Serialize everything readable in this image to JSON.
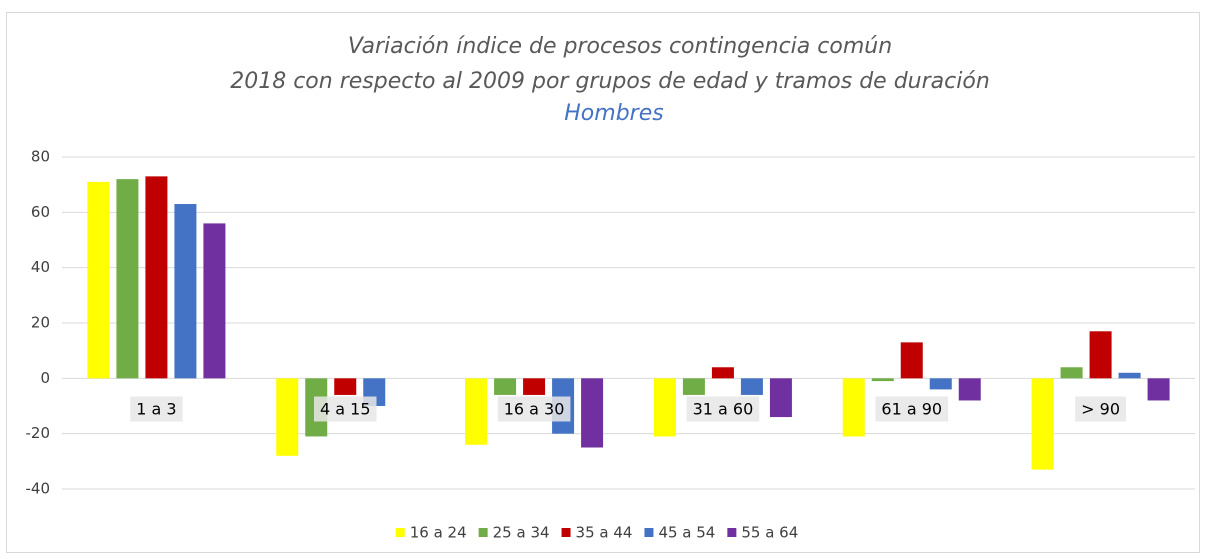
{
  "chart_data": {
    "type": "bar",
    "title": [
      "Variación índice de procesos contingencia común",
      "2018 con respecto al 2009 por grupos de edad y tramos de duración"
    ],
    "subtitle": "Hombres",
    "categories": [
      "1 a 3",
      "4 a 15",
      "16 a 30",
      "31 a 60",
      "61 a 90",
      "> 90"
    ],
    "series": [
      {
        "name": "16 a 24",
        "color": "#ffff00",
        "values": [
          71,
          -28,
          -24,
          -21,
          -21,
          -33
        ]
      },
      {
        "name": "25 a 34",
        "color": "#70ad47",
        "values": [
          72,
          -21,
          -6,
          -6,
          -1,
          4
        ]
      },
      {
        "name": "35 a 44",
        "color": "#c00000",
        "values": [
          73,
          -6,
          -6,
          4,
          13,
          17
        ]
      },
      {
        "name": "45 a 54",
        "color": "#4472c4",
        "values": [
          63,
          -10,
          -20,
          -6,
          -4,
          2
        ]
      },
      {
        "name": "55 a 64",
        "color": "#7030a0",
        "values": [
          56,
          0,
          -25,
          -14,
          -8,
          -8
        ]
      }
    ],
    "ylim": [
      -40,
      80
    ],
    "yticks": [
      -40,
      -20,
      0,
      20,
      40,
      60,
      80
    ],
    "grid": true,
    "legend": "bottom"
  }
}
